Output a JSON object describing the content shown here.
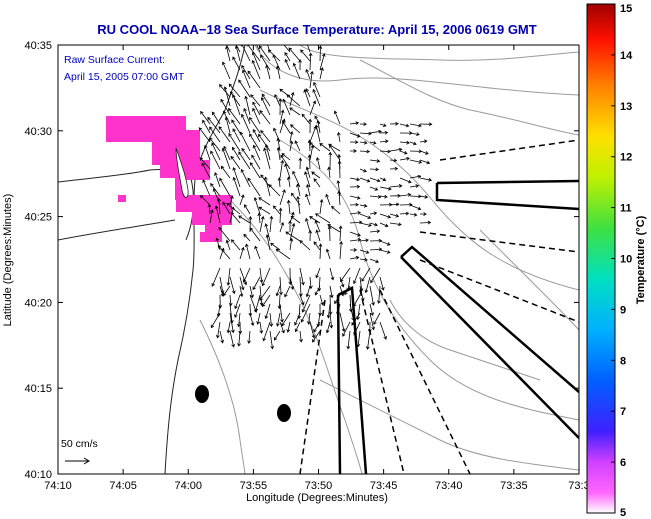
{
  "title": "RU COOL  NOAA−18  Sea Surface Temperature:  April 15, 2006 0619 GMT",
  "inset": {
    "line1": "Raw Surface Current:",
    "line2": "April 15, 2005 07:00 GMT"
  },
  "scale_label": "50 cm/s",
  "colorbar": {
    "label": "Temperature (°C)",
    "ticks": [
      "15",
      "14",
      "13",
      "12",
      "11",
      "10",
      "9",
      "8",
      "7",
      "6",
      "5"
    ],
    "range": [
      5,
      15
    ],
    "colormap": "jet-like with magenta at low end"
  },
  "axes": {
    "xlabel": "Longitude (Degrees:Minutes)",
    "ylabel": "Latitude (Degrees:Minutes)",
    "xticks": [
      "74:10",
      "74:05",
      "74:00",
      "73:55",
      "73:50",
      "73:45",
      "73:40",
      "73:35",
      "73:3"
    ],
    "yticks": [
      "40:35",
      "40:30",
      "40:25",
      "40:20",
      "40:15",
      "40:10"
    ]
  },
  "colors": {
    "title": "#0000b0",
    "inset": "#0000c0",
    "sst_patch": "#ff33cc",
    "bathymetry": "#999999"
  }
}
